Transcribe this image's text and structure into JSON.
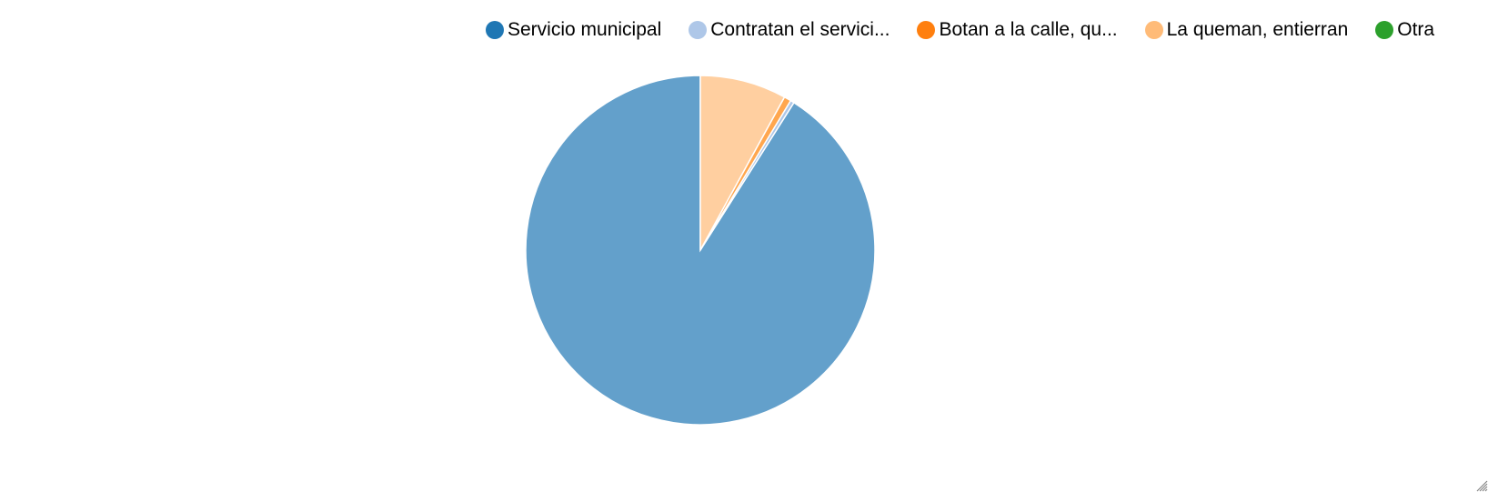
{
  "chart_data": {
    "type": "pie",
    "categories": [
      "Servicio municipal",
      "Contratan el servici...",
      "Botan a la calle, qu...",
      "La queman, entierran",
      "Otra"
    ],
    "values": [
      91.0,
      0.35,
      0.65,
      8.0,
      0.0
    ],
    "legend_colors": [
      "#1f77b4",
      "#aec7e8",
      "#ff7f0e",
      "#ffbb78",
      "#2ca02c"
    ],
    "slice_colors": [
      "#63a0cb",
      "#aec7e8",
      "#ffa74f",
      "#ffcfa0",
      "#2ca02c"
    ],
    "legend_position": "top",
    "start_angle": "12 o'clock",
    "direction": "counter-clockwise"
  }
}
